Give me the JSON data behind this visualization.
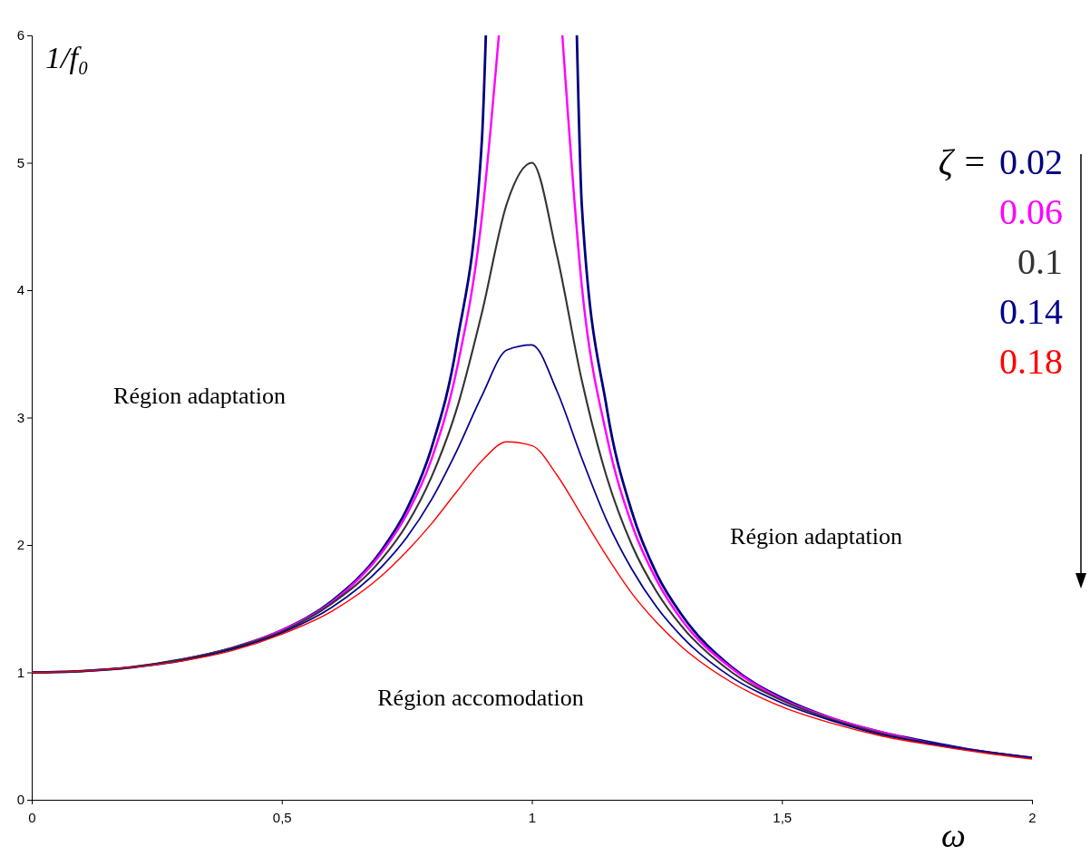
{
  "chart_data": {
    "type": "line",
    "xlabel": "ω",
    "ylabel": "1/f₀",
    "legend_title": "ζ =",
    "legend": "top right",
    "grid": false,
    "marker": "none",
    "line_style": "solid",
    "xlim": [
      0,
      2
    ],
    "xticks": [
      0,
      {
        "value": 0.5,
        "label": "0,5"
      },
      1,
      {
        "value": 1.5,
        "label": "1,5"
      },
      2
    ],
    "ylim": [
      0,
      6
    ],
    "yticks": [
      0,
      1,
      2,
      3,
      4,
      5,
      6
    ],
    "x": [
      0,
      0.1,
      0.2,
      0.3,
      0.4,
      0.5,
      0.6,
      0.7,
      0.75,
      0.8,
      0.85,
      0.9,
      0.95,
      1,
      1.05,
      1.1,
      1.15,
      1.2,
      1.25,
      1.3,
      1.4,
      1.5,
      1.6,
      1.7,
      1.8,
      1.9,
      2
    ],
    "series": [
      {
        "name": "0.02",
        "color": "#000080",
        "x": [
          0,
          0.1,
          0.2,
          0.3,
          0.4,
          0.5,
          0.6,
          0.7,
          0.75,
          0.8,
          0.85,
          0.9,
          0.908,
          1,
          1.09,
          1.1,
          1.15,
          1.2,
          1.25,
          1.3,
          1.4,
          1.5,
          1.6,
          1.7,
          1.8,
          1.9,
          2
        ],
        "values": [
          1,
          1.01,
          1.04,
          1.1,
          1.19,
          1.33,
          1.56,
          1.96,
          2.28,
          2.77,
          3.58,
          5.17,
          6,
          null,
          6,
          4.66,
          3.07,
          2.26,
          1.77,
          1.45,
          1.04,
          0.8,
          0.64,
          0.53,
          0.45,
          0.38,
          0.33
        ]
      },
      {
        "name": "0.06",
        "color": "#ff00ff",
        "x": [
          0.3,
          0.4,
          0.5,
          0.6,
          0.7,
          0.75,
          0.8,
          0.85,
          0.9,
          0.934,
          1,
          1.061,
          1.1,
          1.15,
          1.2,
          1.25,
          1.3,
          1.4,
          1.5,
          1.6,
          1.7,
          1.8,
          1.9,
          2
        ],
        "values": [
          1.1,
          1.19,
          1.33,
          1.55,
          1.94,
          2.24,
          2.68,
          3.38,
          4.57,
          6,
          null,
          6,
          4.03,
          2.85,
          2.16,
          1.72,
          1.41,
          1.03,
          0.79,
          0.64,
          0.53,
          0.44,
          0.38,
          0.33
        ]
      },
      {
        "name": "0.1",
        "color": "#333333",
        "values": [
          1,
          1.01,
          1.04,
          1.1,
          1.19,
          1.32,
          1.54,
          1.89,
          2.16,
          2.54,
          3.07,
          3.82,
          4.68,
          5,
          4.28,
          3.29,
          2.53,
          2,
          1.63,
          1.36,
          1,
          0.78,
          0.63,
          0.52,
          0.44,
          0.38,
          0.33
        ]
      },
      {
        "name": "0.14",
        "color": "#00008b",
        "values": [
          1,
          1.01,
          1.04,
          1.09,
          1.18,
          1.31,
          1.51,
          1.83,
          2.06,
          2.36,
          2.74,
          3.17,
          3.53,
          3.57,
          3.21,
          2.68,
          2.19,
          1.81,
          1.51,
          1.28,
          0.96,
          0.76,
          0.62,
          0.51,
          0.44,
          0.38,
          0.33
        ]
      },
      {
        "name": "0.18",
        "color": "#ff0000",
        "values": [
          1,
          1.01,
          1.04,
          1.09,
          1.17,
          1.3,
          1.48,
          1.76,
          1.95,
          2.17,
          2.42,
          2.66,
          2.81,
          2.78,
          2.55,
          2.23,
          1.91,
          1.62,
          1.39,
          1.2,
          0.92,
          0.73,
          0.6,
          0.5,
          0.43,
          0.37,
          0.32
        ]
      }
    ],
    "annotations": [
      "Région adaptation",
      "Région adaptation",
      "Région accomodation"
    ]
  }
}
